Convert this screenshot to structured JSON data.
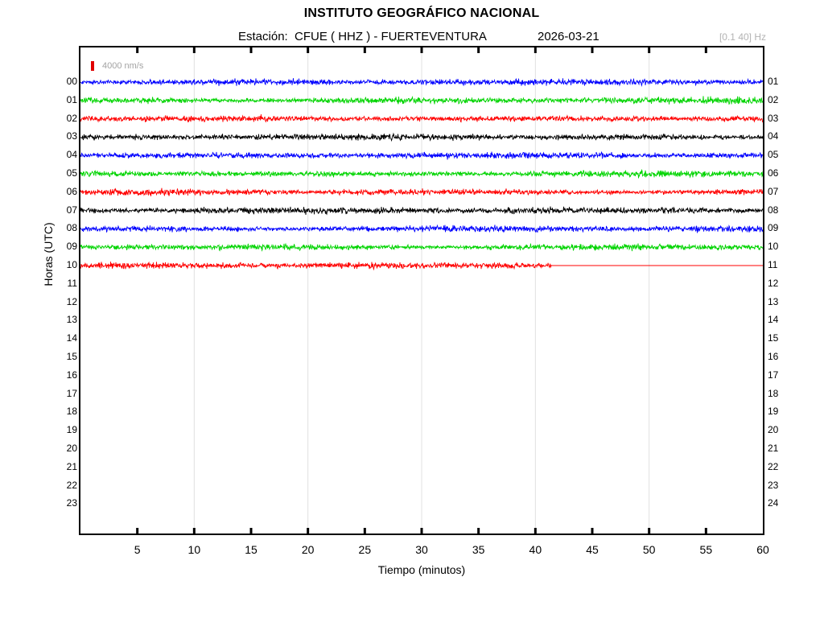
{
  "header": {
    "title": "INSTITUTO GEOGRÁFICO NACIONAL",
    "station_line": "Estación:  CFUE ( HHZ ) - FUERTEVENTURA",
    "date": "2026-03-21",
    "filter_band": "[0.1 40] Hz"
  },
  "chart_data": {
    "type": "line",
    "subtype": "helicorder-seismogram",
    "title": "INSTITUTO GEOGRÁFICO NACIONAL",
    "subtitle": "Estación:  CFUE ( HHZ ) - FUERTEVENTURA  2026-03-21",
    "xlabel": "Tiempo (minutos)",
    "ylabel": "Horas (UTC)",
    "x_range": [
      0,
      60
    ],
    "x_tick_labels": [
      "5",
      "10",
      "15",
      "20",
      "25",
      "30",
      "35",
      "40",
      "45",
      "50",
      "55",
      "60"
    ],
    "tick_minutes": [
      5,
      10,
      15,
      20,
      25,
      30,
      35,
      40,
      45,
      50,
      55
    ],
    "gridline_minutes": [
      10,
      20,
      30,
      40,
      50
    ],
    "grid_on": true,
    "grid_color": "#e0e0e0",
    "amplitude_scale_label": "4000 nm/s",
    "amplitude_scale_color": "#e00000",
    "left_hour_labels": [
      "00",
      "01",
      "02",
      "03",
      "04",
      "05",
      "06",
      "07",
      "08",
      "09",
      "10",
      "11",
      "12",
      "13",
      "14",
      "15",
      "16",
      "17",
      "18",
      "19",
      "20",
      "21",
      "22",
      "23"
    ],
    "right_hour_labels": [
      "01",
      "02",
      "03",
      "04",
      "05",
      "06",
      "07",
      "08",
      "09",
      "10",
      "11",
      "12",
      "13",
      "14",
      "15",
      "16",
      "17",
      "18",
      "19",
      "20",
      "21",
      "22",
      "23",
      "24"
    ],
    "trace_color_cycle": [
      "#0000ff",
      "#00d400",
      "#ff0000",
      "#000000"
    ],
    "traces": [
      {
        "hour": "00",
        "color": "#0000ff",
        "signal": "continuous noise",
        "coverage_minutes": 60,
        "flat_after": false
      },
      {
        "hour": "01",
        "color": "#00d400",
        "signal": "continuous noise",
        "coverage_minutes": 60,
        "flat_after": false
      },
      {
        "hour": "02",
        "color": "#ff0000",
        "signal": "continuous noise",
        "coverage_minutes": 60,
        "flat_after": false
      },
      {
        "hour": "03",
        "color": "#000000",
        "signal": "continuous noise",
        "coverage_minutes": 60,
        "flat_after": false
      },
      {
        "hour": "04",
        "color": "#0000ff",
        "signal": "continuous noise",
        "coverage_minutes": 60,
        "flat_after": false
      },
      {
        "hour": "05",
        "color": "#00d400",
        "signal": "continuous noise",
        "coverage_minutes": 60,
        "flat_after": false
      },
      {
        "hour": "06",
        "color": "#ff0000",
        "signal": "continuous noise",
        "coverage_minutes": 60,
        "flat_after": false
      },
      {
        "hour": "07",
        "color": "#000000",
        "signal": "continuous noise",
        "coverage_minutes": 60,
        "flat_after": false
      },
      {
        "hour": "08",
        "color": "#0000ff",
        "signal": "continuous noise",
        "coverage_minutes": 60,
        "flat_after": false
      },
      {
        "hour": "09",
        "color": "#00d400",
        "signal": "continuous noise",
        "coverage_minutes": 60,
        "flat_after": false
      },
      {
        "hour": "10",
        "color": "#ff0000",
        "signal": "noise then flatline",
        "coverage_minutes": 41.4,
        "flat_after": true
      }
    ],
    "empty_hours": [
      "11",
      "12",
      "13",
      "14",
      "15",
      "16",
      "17",
      "18",
      "19",
      "20",
      "21",
      "22",
      "23"
    ],
    "legend_position": "none"
  }
}
